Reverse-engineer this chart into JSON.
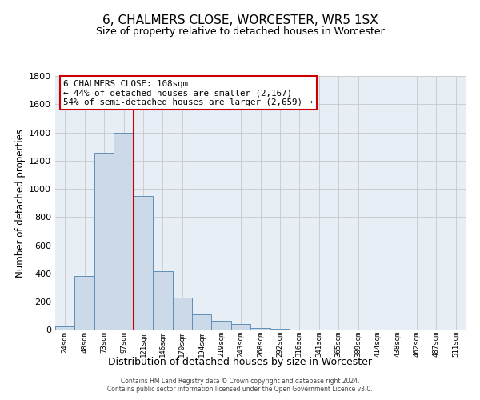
{
  "title": "6, CHALMERS CLOSE, WORCESTER, WR5 1SX",
  "subtitle": "Size of property relative to detached houses in Worcester",
  "xlabel": "Distribution of detached houses by size in Worcester",
  "ylabel": "Number of detached properties",
  "bar_labels": [
    "24sqm",
    "48sqm",
    "73sqm",
    "97sqm",
    "121sqm",
    "146sqm",
    "170sqm",
    "194sqm",
    "219sqm",
    "243sqm",
    "268sqm",
    "292sqm",
    "316sqm",
    "341sqm",
    "365sqm",
    "389sqm",
    "414sqm",
    "438sqm",
    "462sqm",
    "487sqm",
    "511sqm"
  ],
  "bar_values": [
    25,
    385,
    1255,
    1400,
    950,
    415,
    230,
    110,
    65,
    40,
    15,
    10,
    5,
    5,
    5,
    2,
    1,
    0,
    0,
    0,
    0
  ],
  "bar_color": "#ccd9e8",
  "bar_edge_color": "#6090b8",
  "vline_x": 3.5,
  "vline_color": "#cc0000",
  "annotation_text": "6 CHALMERS CLOSE: 108sqm\n← 44% of detached houses are smaller (2,167)\n54% of semi-detached houses are larger (2,659) →",
  "annotation_box_facecolor": "#ffffff",
  "annotation_box_edgecolor": "#cc0000",
  "ylim": [
    0,
    1800
  ],
  "yticks": [
    0,
    200,
    400,
    600,
    800,
    1000,
    1200,
    1400,
    1600,
    1800
  ],
  "grid_color": "#c8c8c8",
  "plot_bg_color": "#e8eef5",
  "footer_line1": "Contains HM Land Registry data © Crown copyright and database right 2024.",
  "footer_line2": "Contains public sector information licensed under the Open Government Licence v3.0."
}
